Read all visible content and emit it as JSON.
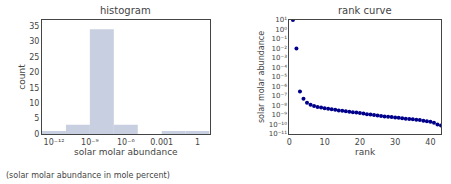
{
  "chart_data": [
    {
      "type": "histogram",
      "title": "histogram",
      "xlabel": "solar molar abundance",
      "ylabel": "count",
      "bins": [
        1e-13,
        1e-11,
        1e-09,
        1e-07,
        1e-05,
        0.001,
        0.1,
        10
      ],
      "values": [
        1,
        3,
        34,
        3,
        0,
        1,
        1
      ],
      "color": "#c8cfe0",
      "log": "x",
      "xlim": [
        1e-13,
        10
      ],
      "xticks": [
        {
          "value": 1e-12,
          "label": "10⁻¹²"
        },
        {
          "value": 1e-09,
          "label": "10⁻⁹"
        },
        {
          "value": 1e-06,
          "label": "10⁻⁶"
        },
        0.001,
        1
      ],
      "ylim": [
        0,
        37
      ],
      "yticks": [
        0,
        5,
        10,
        15,
        20,
        25,
        30,
        35
      ],
      "grid": false,
      "annotations": [
        "(solar molar abundance in mole percent)"
      ]
    },
    {
      "type": "scatter",
      "title": "rank curve",
      "xlabel": "rank",
      "ylabel": "solar molar abundance",
      "x": [
        1,
        2,
        3,
        4,
        5,
        6,
        7,
        8,
        9,
        10,
        11,
        12,
        13,
        14,
        15,
        16,
        17,
        18,
        19,
        20,
        21,
        22,
        23,
        24,
        25,
        26,
        27,
        28,
        29,
        30,
        31,
        32,
        33,
        34,
        35,
        36,
        37,
        38,
        39,
        40,
        41,
        42,
        43
      ],
      "values": [
        10.0,
        0.01,
        3e-07,
        5e-08,
        2e-08,
        1.2e-08,
        9e-09,
        7e-09,
        6e-09,
        5e-09,
        4.5e-09,
        4e-09,
        3.5e-09,
        3e-09,
        2.8e-09,
        2.5e-09,
        2.2e-09,
        2e-09,
        1.8e-09,
        1.6e-09,
        1.4e-09,
        1.2e-09,
        1.1e-09,
        1e-09,
        9e-10,
        8e-10,
        7e-10,
        6.5e-10,
        6e-10,
        5.5e-10,
        5e-10,
        4.5e-10,
        4e-10,
        3.8e-10,
        3.5e-10,
        3.2e-10,
        3e-10,
        2.5e-10,
        2.2e-10,
        2e-10,
        1.5e-10,
        1e-10,
        8e-11
      ],
      "color": "#00008b",
      "marker": "circle",
      "log": "y",
      "xlim": [
        0,
        43
      ],
      "xticks": [
        0,
        10,
        20,
        30,
        40
      ],
      "ylim": [
        1e-11,
        10
      ],
      "yticks": [
        {
          "value": 1e-11,
          "label": "10⁻¹¹"
        },
        {
          "value": 1e-10,
          "label": "10⁻¹⁰"
        },
        {
          "value": 1e-09,
          "label": "10⁻⁹"
        },
        {
          "value": 1e-08,
          "label": "10⁻⁸"
        },
        {
          "value": 1e-07,
          "label": "10⁻⁷"
        },
        {
          "value": 1e-06,
          "label": "10⁻⁶"
        },
        {
          "value": 1e-05,
          "label": "10⁻⁵"
        },
        {
          "value": 0.0001,
          "label": "10⁻⁴"
        },
        {
          "value": 0.001,
          "label": "10⁻³"
        },
        {
          "value": 0.01,
          "label": "10⁻²"
        },
        {
          "value": 0.1,
          "label": "10⁻¹"
        },
        {
          "value": 1,
          "label": "10⁰"
        },
        {
          "value": 10,
          "label": "10¹"
        }
      ],
      "grid": false
    }
  ]
}
